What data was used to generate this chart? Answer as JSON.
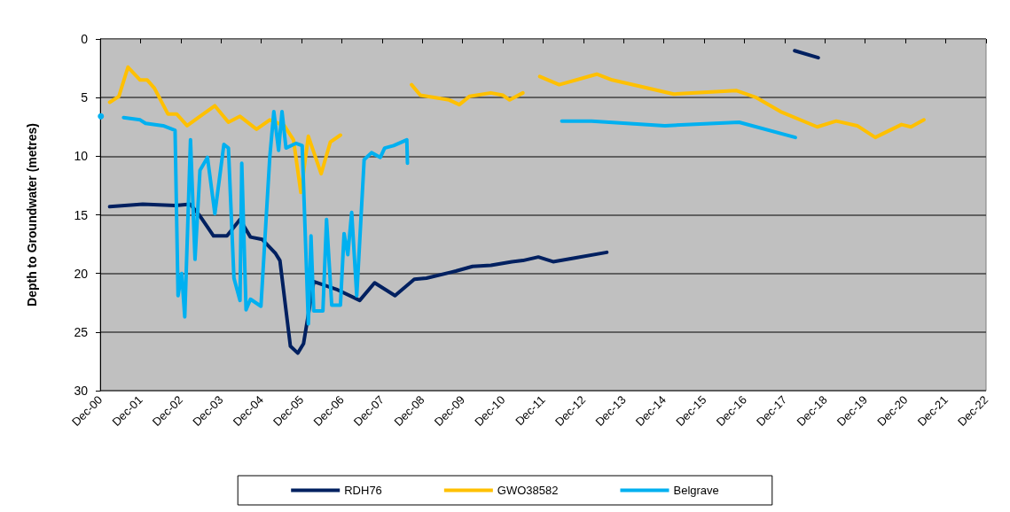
{
  "chart_data": {
    "type": "line",
    "ylabel": "Depth to Groundwater (metres)",
    "ylim": [
      30,
      0
    ],
    "yticks": [
      0,
      5,
      10,
      15,
      20,
      25,
      30
    ],
    "xlim": [
      "2000-12",
      "2022-12"
    ],
    "xticks": [
      {
        "value": "2000-12",
        "label": "Dec-00"
      },
      {
        "value": "2001-12",
        "label": "Dec-01"
      },
      {
        "value": "2002-12",
        "label": "Dec-02"
      },
      {
        "value": "2003-12",
        "label": "Dec-03"
      },
      {
        "value": "2004-12",
        "label": "Dec-04"
      },
      {
        "value": "2005-12",
        "label": "Dec-05"
      },
      {
        "value": "2006-12",
        "label": "Dec-06"
      },
      {
        "value": "2007-12",
        "label": "Dec-07"
      },
      {
        "value": "2008-12",
        "label": "Dec-08"
      },
      {
        "value": "2009-12",
        "label": "Dec-09"
      },
      {
        "value": "2010-12",
        "label": "Dec-10"
      },
      {
        "value": "2011-12",
        "label": "Dec-11"
      },
      {
        "value": "2012-12",
        "label": "Dec-12"
      },
      {
        "value": "2013-12",
        "label": "Dec-13"
      },
      {
        "value": "2014-12",
        "label": "Dec-14"
      },
      {
        "value": "2015-12",
        "label": "Dec-15"
      },
      {
        "value": "2016-12",
        "label": "Dec-16"
      },
      {
        "value": "2017-12",
        "label": "Dec-17"
      },
      {
        "value": "2018-12",
        "label": "Dec-18"
      },
      {
        "value": "2019-12",
        "label": "Dec-19"
      },
      {
        "value": "2020-12",
        "label": "Dec-20"
      },
      {
        "value": "2021-12",
        "label": "Dec-21"
      },
      {
        "value": "2022-12",
        "label": "Dec-22"
      }
    ],
    "grid": "y",
    "legend": "bottom",
    "marker": "none",
    "line_style": "solid",
    "series": [
      {
        "name": "RDH76",
        "color": "#002060",
        "x": [
          "2001-02-25",
          "2001-12-22",
          "2002-10-13",
          "2003-02-25",
          "2003-05-25",
          "2003-09-25",
          "2004-01-25",
          "2004-05-22",
          "2004-08-25",
          "2004-12-10",
          "2005-04-10",
          "2005-05-19",
          "2005-08-22",
          "2005-10-28",
          "2005-12-19",
          "2006-03-22",
          "2006-10-25",
          "2007-05-13",
          "2007-09-25",
          "2008-03-28",
          "2008-09-19",
          "2009-01-07",
          "2009-10-01",
          "2010-03-01",
          "2010-08-15",
          "2011-02-22",
          "2011-06-01",
          "2011-10-19",
          "2012-03-01",
          "2012-09-01",
          "2013-07-01",
          "2015-01-01",
          "2018-03-01",
          "2018-10-01"
        ],
        "values": [
          14.3,
          14.1,
          14.2,
          14.1,
          15.1,
          16.8,
          16.8,
          15.4,
          16.9,
          17.1,
          18.3,
          18.9,
          26.2,
          26.8,
          26.0,
          20.7,
          21.4,
          22.3,
          20.8,
          21.9,
          20.5,
          20.4,
          19.8,
          19.4,
          19.3,
          19.0,
          18.9,
          18.6,
          19.0,
          18.7,
          18.2,
          null,
          1.0,
          1.6
        ]
      },
      {
        "name": "GWO38582",
        "color": "#ffc000",
        "x": [
          "2001-02-25",
          "2001-05-19",
          "2001-08-10",
          "2001-11-28",
          "2002-02-01",
          "2002-04-07",
          "2002-08-07",
          "2002-10-25",
          "2003-01-28",
          "2003-05-25",
          "2003-10-07",
          "2004-02-07",
          "2004-05-22",
          "2004-10-19",
          "2005-02-16",
          "2005-06-28",
          "2005-09-19",
          "2005-11-25",
          "2006-02-01",
          "2006-05-28",
          "2006-08-19",
          "2006-11-19",
          "2007-10-01",
          "2008-08-25",
          "2008-11-13",
          "2009-08-01",
          "2009-11-01",
          "2010-02-01",
          "2010-08-15",
          "2010-12-01",
          "2011-02-01",
          "2011-06-01",
          "2011-08-15",
          "2011-11-01",
          "2012-04-25",
          "2013-04-01",
          "2013-08-19",
          "2015-03-01",
          "2016-09-15",
          "2017-03-19",
          "2017-10-25",
          "2018-09-22",
          "2019-03-13",
          "2019-09-19",
          "2020-03-01",
          "2020-10-25",
          "2021-01-19",
          "2021-05-16"
        ],
        "values": [
          5.4,
          4.9,
          2.4,
          3.5,
          3.5,
          4.2,
          6.4,
          6.4,
          7.4,
          6.6,
          5.7,
          7.1,
          6.6,
          7.7,
          6.9,
          7.4,
          8.6,
          13.1,
          8.3,
          11.5,
          8.8,
          8.2,
          null,
          3.9,
          4.8,
          5.2,
          5.6,
          4.9,
          4.6,
          4.8,
          5.2,
          4.6,
          null,
          3.2,
          3.9,
          3.0,
          3.5,
          4.7,
          4.4,
          5.0,
          6.2,
          7.5,
          7.0,
          7.4,
          8.4,
          7.3,
          7.5,
          6.9
        ]
      },
      {
        "name": "Belgrave",
        "color": "#00b0f0",
        "x": [
          "2000-12-07",
          "2001-03-15",
          "2001-07-01",
          "2001-11-28",
          "2002-01-16",
          "2002-06-25",
          "2002-10-11",
          "2002-11-07",
          "2002-12-10",
          "2003-01-07",
          "2003-02-28",
          "2003-04-10",
          "2003-05-25",
          "2003-08-01",
          "2003-10-07",
          "2003-12-28",
          "2004-02-07",
          "2004-03-28",
          "2004-05-22",
          "2004-06-07",
          "2004-07-16",
          "2004-08-25",
          "2004-11-28",
          "2005-02-16",
          "2005-03-25",
          "2005-05-07",
          "2005-06-07",
          "2005-07-13",
          "2005-10-13",
          "2005-12-07",
          "2006-02-01",
          "2006-02-25",
          "2006-03-22",
          "2006-06-13",
          "2006-07-16",
          "2006-09-01",
          "2006-11-19",
          "2006-12-22",
          "2007-01-25",
          "2007-03-01",
          "2007-04-16",
          "2007-06-22",
          "2007-08-28",
          "2007-11-16",
          "2007-12-25",
          "2008-03-16",
          "2008-07-13",
          "2008-07-19",
          "2010-01-01",
          "2012-05-19",
          "2013-02-13",
          "2014-12-10",
          "2016-10-13",
          "2018-03-07"
        ],
        "values": [
          6.6,
          null,
          6.7,
          6.9,
          7.2,
          7.4,
          7.8,
          21.9,
          20.0,
          23.7,
          8.6,
          18.8,
          11.2,
          10.1,
          14.9,
          9.0,
          9.3,
          20.4,
          22.3,
          10.6,
          23.1,
          22.2,
          22.8,
          10.1,
          6.2,
          9.5,
          6.2,
          9.3,
          8.9,
          9.1,
          24.3,
          16.8,
          23.2,
          23.2,
          15.4,
          22.7,
          22.7,
          16.6,
          18.4,
          14.8,
          21.9,
          10.3,
          9.7,
          10.1,
          9.3,
          9.1,
          8.6,
          10.6,
          null,
          7.0,
          7.0,
          7.4,
          7.1,
          8.4
        ]
      }
    ]
  }
}
